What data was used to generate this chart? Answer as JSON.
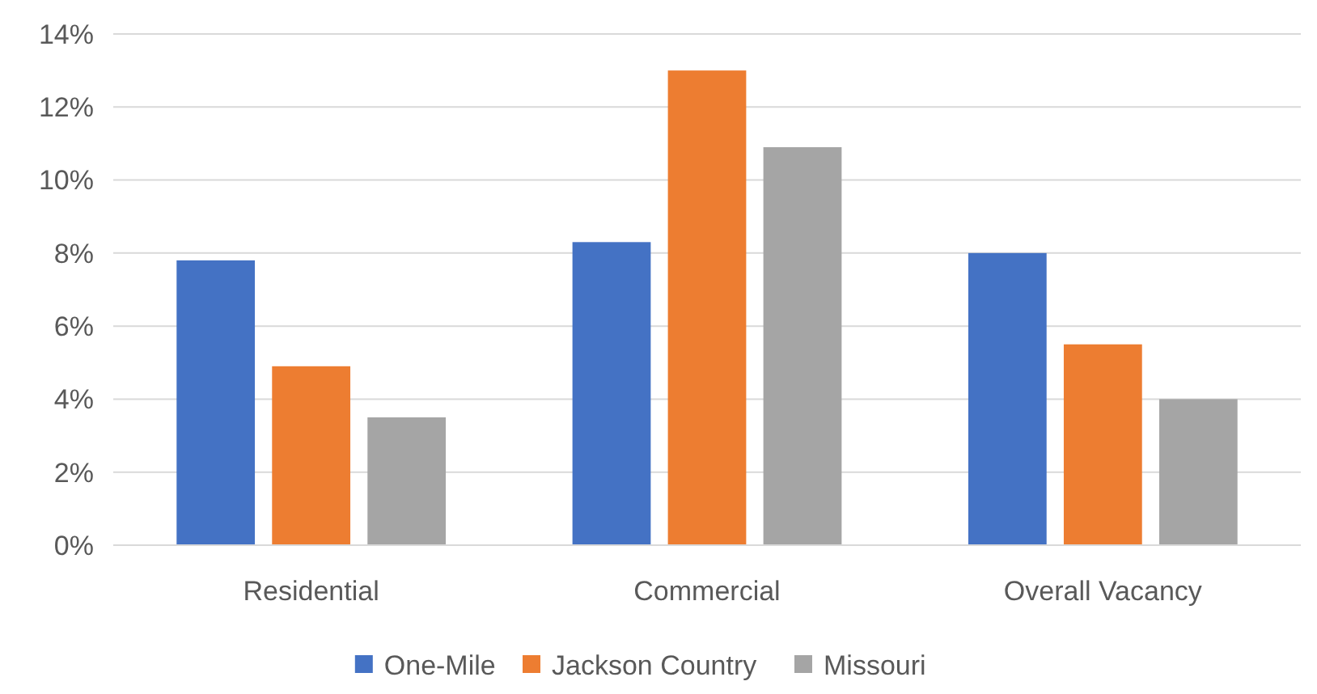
{
  "chart_data": {
    "type": "bar",
    "categories": [
      "Residential",
      "Commercial",
      "Overall Vacancy"
    ],
    "series": [
      {
        "name": "One-Mile",
        "color": "#4472c4",
        "values": [
          7.8,
          8.3,
          8.0
        ]
      },
      {
        "name": "Jackson Country",
        "color": "#ed7d31",
        "values": [
          4.9,
          13.0,
          5.5
        ]
      },
      {
        "name": "Missouri",
        "color": "#a5a5a5",
        "values": [
          3.5,
          10.9,
          4.0
        ]
      }
    ],
    "ylim": [
      0,
      14
    ],
    "yticks": [
      {
        "value": 0,
        "label": "0%"
      },
      {
        "value": 2,
        "label": "2%"
      },
      {
        "value": 4,
        "label": "4%"
      },
      {
        "value": 6,
        "label": "6%"
      },
      {
        "value": 8,
        "label": "8%"
      },
      {
        "value": 10,
        "label": "10%"
      },
      {
        "value": 12,
        "label": "12%"
      },
      {
        "value": 14,
        "label": "14%"
      }
    ],
    "grid": "y",
    "legend": "bottom"
  }
}
